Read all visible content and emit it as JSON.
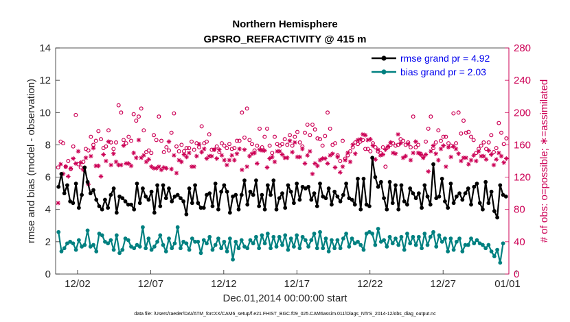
{
  "chart_data": {
    "type": "line",
    "title": "Northern Hemisphere",
    "subtitle": "GPSRO_REFRACTIVITY @ 415 m",
    "xlabel": "Dec.01,2014 00:00:00 start",
    "ylabel": "rmse and bias (model - observation)",
    "y2label": "# of obs: o=possible; ∗=assimilated",
    "footnote": "data file: /Users/raeder/DAI/ATM_forcXX/CAM6_setup/f.e21.FHIST_BGC.f09_025.CAM6assim.011/Diags_NTrS_2014-12/obs_diag_output.nc",
    "xlim": [
      0.5,
      31.5
    ],
    "ylim": [
      0,
      14
    ],
    "y2lim": [
      0,
      280
    ],
    "x_ticks": [
      2,
      7,
      12,
      17,
      22,
      27,
      32
    ],
    "x_tick_labels": [
      "12/02",
      "12/07",
      "12/12",
      "12/17",
      "12/22",
      "12/27",
      "01/01"
    ],
    "y_ticks": [
      0,
      2,
      4,
      6,
      8,
      10,
      12,
      14
    ],
    "y2_ticks": [
      0,
      40,
      80,
      120,
      160,
      200,
      240,
      280
    ],
    "legend_position": "top-right",
    "grid": false,
    "colors": {
      "rmse": "#000000",
      "bias": "#008080",
      "obs": "#cc0055",
      "y2axis": "#cc0055"
    },
    "series": [
      {
        "name": "rmse grand pr = 4.92",
        "axis": "left",
        "marker": "circle",
        "values": [
          5.4,
          6.2,
          5.0,
          5.5,
          4.5,
          4.4,
          5.6,
          4.1,
          4.9,
          6.6,
          5.7,
          5.0,
          5.2,
          4.6,
          4.2,
          4.0,
          4.6,
          4.1,
          4.9,
          5.3,
          3.8,
          4.8,
          4.7,
          4.5,
          4.3,
          4.3,
          4.0,
          5.6,
          4.4,
          5.3,
          4.8,
          4.6,
          5.1,
          3.8,
          5.5,
          4.2,
          5.5,
          4.7,
          5.3,
          4.5,
          4.8,
          4.9,
          4.7,
          4.5,
          3.7,
          5.3,
          4.4,
          5.5,
          4.4,
          4.1,
          4.1,
          4.9,
          5.0,
          4.2,
          5.6,
          4.0,
          5.1,
          5.5,
          5.1,
          3.8,
          4.8,
          4.9,
          4.0,
          4.9,
          5.8,
          4.3,
          5.1,
          4.9,
          5.8,
          4.2,
          4.9,
          4.0,
          5.5,
          4.9,
          5.8,
          4.0,
          4.7,
          5.0,
          4.1,
          5.5,
          5.1,
          4.4,
          5.6,
          4.6,
          5.4,
          5.3,
          5.4,
          4.6,
          5.0,
          4.2,
          5.6,
          4.8,
          4.7,
          5.3,
          4.3,
          5.1,
          4.8,
          4.5,
          4.9,
          5.6,
          4.7,
          4.6,
          4.3,
          5.9,
          4.0,
          5.9,
          4.3,
          4.2,
          7.2,
          6.0,
          5.4,
          5.7,
          4.7,
          4.0,
          5.7,
          4.4,
          5.5,
          4.0,
          5.5,
          4.5,
          4.3,
          5.3,
          5.0,
          4.7,
          5.0,
          4.1,
          5.5,
          4.8,
          4.3,
          6.8,
          4.7,
          4.8,
          5.9,
          4.5,
          4.1,
          5.6,
          4.4,
          4.8,
          5.0,
          4.6,
          5.0,
          5.3,
          4.3,
          5.4,
          5.6,
          4.4,
          4.0,
          5.7,
          4.4,
          5.1,
          3.9,
          3.5,
          5.5,
          4.9,
          4.8
        ]
      },
      {
        "name": "bias grand pr = 2.03",
        "axis": "left",
        "marker": "circle",
        "values": [
          2.6,
          1.4,
          1.6,
          1.9,
          2.0,
          1.9,
          1.5,
          2.1,
          1.7,
          1.8,
          2.7,
          1.7,
          1.8,
          1.4,
          2.5,
          2.4,
          2.0,
          1.9,
          2.1,
          1.5,
          2.4,
          1.3,
          1.5,
          2.2,
          2.1,
          1.7,
          1.6,
          1.8,
          1.7,
          2.9,
          1.6,
          2.2,
          1.5,
          1.7,
          2.0,
          2.4,
          1.8,
          1.4,
          2.2,
          1.6,
          1.9,
          2.9,
          1.6,
          2.0,
          1.9,
          1.5,
          2.2,
          2.0,
          2.0,
          1.3,
          2.1,
          1.9,
          2.3,
          1.5,
          1.8,
          2.2,
          1.6,
          2.0,
          1.4,
          2.2,
          0.9,
          2.0,
          1.6,
          2.1,
          1.7,
          1.6,
          2.1,
          1.9,
          2.3,
          1.6,
          2.4,
          1.9,
          2.5,
          1.6,
          2.3,
          1.7,
          2.3,
          1.8,
          2.4,
          1.5,
          2.2,
          1.7,
          2.4,
          1.6,
          2.3,
          2.1,
          1.7,
          2.1,
          2.5,
          1.6,
          2.6,
          1.6,
          2.2,
          1.4,
          2.1,
          1.6,
          2.1,
          1.6,
          2.2,
          2.5,
          1.7,
          2.2,
          1.9,
          2.0,
          1.8,
          1.5,
          2.5,
          2.6,
          2.5,
          1.8,
          2.8,
          2.0,
          2.1,
          1.7,
          2.3,
          1.9,
          2.2,
          1.8,
          2.3,
          1.5,
          2.5,
          1.9,
          2.3,
          1.8,
          2.3,
          1.6,
          2.5,
          1.8,
          2.3,
          2.6,
          1.7,
          2.4,
          2.0,
          2.2,
          1.4,
          2.2,
          1.5,
          2.0,
          2.2,
          1.4,
          1.8,
          1.8,
          2.2,
          1.9,
          2.1,
          1.9,
          1.8,
          1.6,
          1.8,
          1.4,
          1.1,
          1.5,
          0.7,
          1.9
        ]
      },
      {
        "name": "obs possible",
        "axis": "right",
        "marker": "o",
        "values": [
          132,
          164,
          162,
          133,
          140,
          130,
          158,
          197,
          136,
          132,
          139,
          155,
          153,
          170,
          160,
          165,
          177,
          167,
          156,
          158,
          178,
          163,
          155,
          163,
          209,
          200,
          166,
          162,
          170,
          165,
          198,
          190,
          195,
          205,
          178,
          151,
          153,
          150,
          172,
          166,
          195,
          165,
          151,
          157,
          153,
          175,
          199,
          158,
          152,
          160,
          152,
          156,
          156,
          164,
          154,
          162,
          157,
          183,
          162,
          164,
          173,
          154,
          154,
          158,
          151,
          162,
          159,
          156,
          161,
          155,
          156,
          165,
          165,
          200,
          169,
          205,
          166,
          161,
          153,
          159,
          180,
          157,
          170,
          180,
          159,
          150,
          170,
          161,
          159,
          161,
          167,
          160,
          172,
          159,
          170,
          176,
          163,
          158,
          175,
          185,
          172,
          185,
          179,
          168,
          167,
          159,
          171,
          200,
          180,
          160,
          162,
          147,
          140,
          165,
          143,
          147,
          152,
          157,
          163,
          161,
          164,
          166,
          155,
          155,
          152,
          162,
          157,
          152,
          150,
          157,
          133,
          157,
          160,
          162,
          159,
          160,
          167,
          165,
          160,
          163,
          157,
          195,
          157,
          160,
          149,
          145,
          164,
          180,
          195,
          156,
          163,
          178,
          165,
          170,
          170,
          162,
          159,
          199,
          162,
          200,
          174,
          190,
          175,
          176,
          170,
          166,
          150,
          155,
          159,
          163,
          155,
          163,
          172,
          151,
          156,
          187,
          175,
          161,
          168
        ]
      },
      {
        "name": "obs assimilated",
        "axis": "right",
        "marker": "asterisk",
        "values": [
          88,
          136,
          124,
          133,
          121,
          131,
          143,
          137,
          152,
          138,
          129,
          144,
          111,
          146,
          156,
          134,
          134,
          121,
          148,
          140,
          164,
          135,
          149,
          139,
          135,
          135,
          159,
          137,
          137,
          134,
          150,
          144,
          166,
          144,
          147,
          139,
          142,
          133,
          131,
          131,
          133,
          129,
          132,
          131,
          164,
          130,
          147,
          125,
          141,
          139,
          148,
          145,
          150,
          133,
          133,
          146,
          161,
          151,
          155,
          143,
          146,
          146,
          154,
          143,
          154,
          147,
          141,
          135,
          141,
          147,
          141,
          149,
          155,
          129,
          154,
          133,
          146,
          149,
          150,
          137,
          154,
          153,
          153,
          132,
          143,
          145,
          139,
          152,
          152,
          148,
          144,
          144,
          165,
          151,
          163,
          145,
          145,
          155,
          137,
          147,
          152,
          124,
          137,
          134,
          141,
          143,
          143,
          137,
          147,
          149,
          132,
          145,
          126,
          133,
          141,
          150,
          139,
          160,
          149,
          166,
          167,
          173,
          172,
          166,
          167,
          159,
          142,
          154,
          147,
          148,
          154,
          158,
          163,
          150,
          149,
          173,
          162,
          144,
          146,
          161,
          141,
          150,
          164,
          150,
          148,
          144,
          148,
          127,
          152,
          159,
          149,
          141,
          155,
          159,
          133,
          157,
          145,
          158,
          155,
          149,
          140,
          144,
          144,
          136,
          141,
          147,
          140,
          152,
          146,
          146,
          142,
          153,
          148,
          135,
          142,
          150,
          146,
          138,
          143
        ]
      }
    ]
  }
}
